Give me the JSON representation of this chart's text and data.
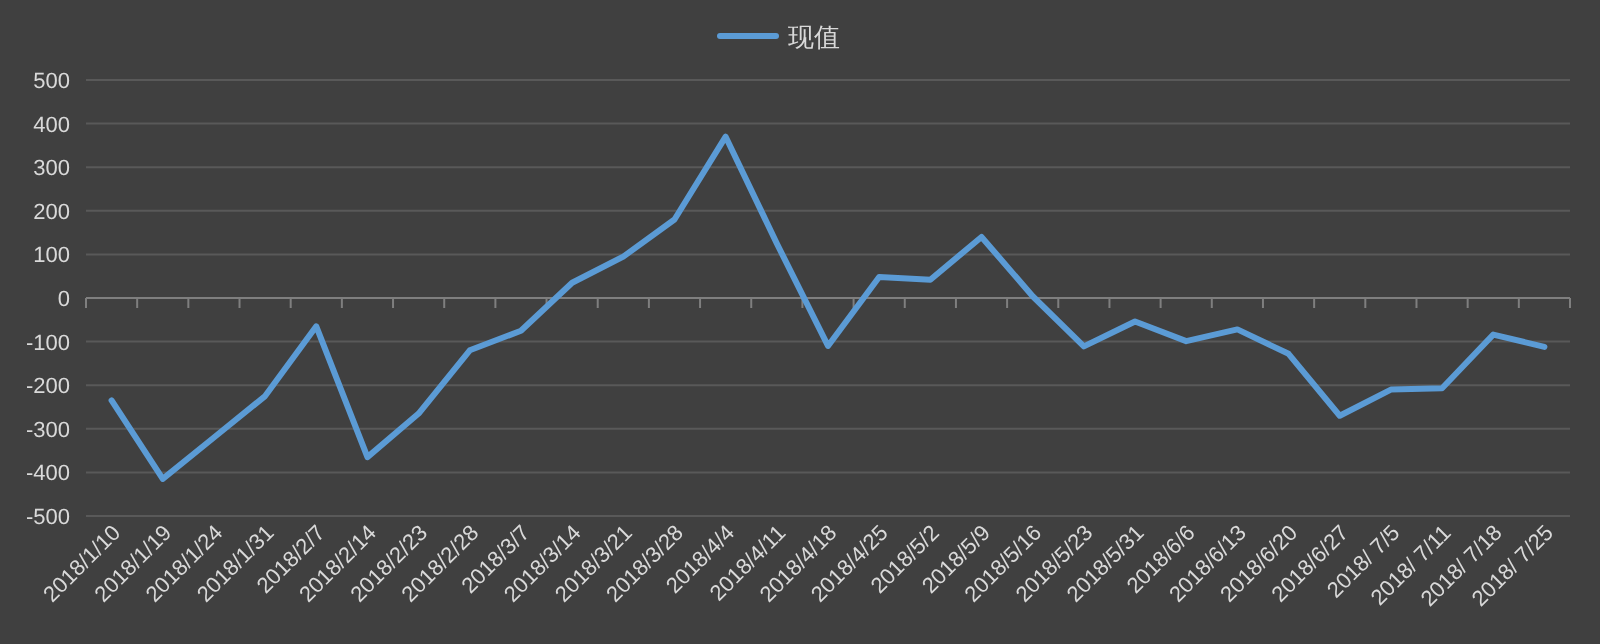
{
  "chart_data": {
    "type": "line",
    "categories": [
      "2018/1/10",
      "2018/1/19",
      "2018/1/24",
      "2018/1/31",
      "2018/2/7",
      "2018/2/14",
      "2018/2/23",
      "2018/2/28",
      "2018/3/7",
      "2018/3/14",
      "2018/3/21",
      "2018/3/28",
      "2018/4/4",
      "2018/4/11",
      "2018/4/18",
      "2018/4/25",
      "2018/5/2",
      "2018/5/9",
      "2018/5/16",
      "2018/5/23",
      "2018/5/31",
      "2018/6/6",
      "2018/6/13",
      "2018/6/20",
      "2018/6/27",
      "2018/ 7/5",
      "2018/ 7/11",
      "2018/ 7/18",
      "2018/ 7/25"
    ],
    "series": [
      {
        "name": "现值",
        "color": "#5b9bd5",
        "values": [
          -235,
          -415,
          -320,
          -225,
          -65,
          -365,
          -265,
          -120,
          -75,
          35,
          95,
          180,
          370,
          125,
          -110,
          48,
          42,
          140,
          4,
          -111,
          -54,
          -99,
          -72,
          -128,
          -270,
          -210,
          -207,
          -84,
          -112
        ]
      }
    ],
    "ylim": [
      -500,
      500
    ],
    "yticks": [
      -500,
      -400,
      -300,
      -200,
      -100,
      0,
      100,
      200,
      300,
      400,
      500
    ],
    "grid": "y",
    "legend": "top"
  }
}
